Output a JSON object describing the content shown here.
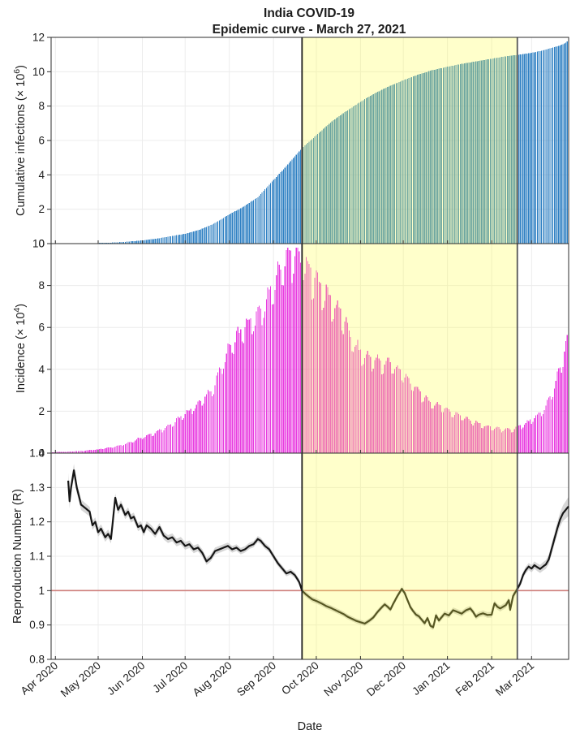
{
  "chart": {
    "title_line1": "India COVID-19",
    "title_line2": "Epidemic curve - March 27, 2021",
    "xlabel": "Date"
  },
  "x_axis": {
    "range_days": [
      0,
      363
    ],
    "ticks": [
      {
        "day": 3,
        "label": "Apr 2020"
      },
      {
        "day": 33,
        "label": "May 2020"
      },
      {
        "day": 64,
        "label": "Jun 2020"
      },
      {
        "day": 94,
        "label": "Jul 2020"
      },
      {
        "day": 125,
        "label": "Aug 2020"
      },
      {
        "day": 156,
        "label": "Sep 2020"
      },
      {
        "day": 186,
        "label": "Oct 2020"
      },
      {
        "day": 217,
        "label": "Nov 2020"
      },
      {
        "day": 247,
        "label": "Dec 2020"
      },
      {
        "day": 278,
        "label": "Jan 2021"
      },
      {
        "day": 309,
        "label": "Feb 2021"
      },
      {
        "day": 337,
        "label": "Mar 2021"
      }
    ]
  },
  "highlight_region": {
    "start_day": 176,
    "end_day": 327,
    "fill": "rgba(255,255,70,0.28)",
    "left_line_color": "#1f1f1f",
    "right_line_color": "#565656",
    "line_width": 1.8
  },
  "chart_data": [
    {
      "type": "bar",
      "name": "cumulative-infections",
      "ylabel": "Cumulative infections (× 10^6)",
      "ylabel_parts": {
        "pre": "Cumulative infections (× 10",
        "sup": "6",
        "post": ")"
      },
      "ylim": [
        0,
        12
      ],
      "yticks": [
        12,
        10,
        8,
        6,
        4,
        2,
        0
      ],
      "ytick_labels": [
        "12",
        "10",
        "8",
        "6",
        "4",
        "2",
        "0"
      ],
      "bar_color": "#2f80c3",
      "points": [
        [
          0,
          0.001
        ],
        [
          10,
          0.007
        ],
        [
          20,
          0.018
        ],
        [
          33,
          0.035
        ],
        [
          43,
          0.06
        ],
        [
          53,
          0.11
        ],
        [
          64,
          0.19
        ],
        [
          74,
          0.29
        ],
        [
          84,
          0.43
        ],
        [
          94,
          0.57
        ],
        [
          104,
          0.8
        ],
        [
          114,
          1.15
        ],
        [
          125,
          1.7
        ],
        [
          135,
          2.15
        ],
        [
          145,
          2.7
        ],
        [
          156,
          3.7
        ],
        [
          166,
          4.6
        ],
        [
          176,
          5.56
        ],
        [
          186,
          6.3
        ],
        [
          196,
          7.05
        ],
        [
          206,
          7.65
        ],
        [
          217,
          8.25
        ],
        [
          227,
          8.75
        ],
        [
          237,
          9.15
        ],
        [
          247,
          9.5
        ],
        [
          257,
          9.82
        ],
        [
          267,
          10.08
        ],
        [
          278,
          10.29
        ],
        [
          288,
          10.46
        ],
        [
          298,
          10.6
        ],
        [
          309,
          10.76
        ],
        [
          319,
          10.9
        ],
        [
          327,
          10.98
        ],
        [
          337,
          11.1
        ],
        [
          344,
          11.22
        ],
        [
          351,
          11.38
        ],
        [
          356,
          11.5
        ],
        [
          359,
          11.6
        ],
        [
          361,
          11.7
        ],
        [
          363,
          11.83
        ]
      ]
    },
    {
      "type": "bar",
      "name": "incidence",
      "ylabel": "Incidence (× 10^4)",
      "ylabel_parts": {
        "pre": "Incidence (× 10",
        "sup": "4",
        "post": ")"
      },
      "ylim": [
        0,
        10
      ],
      "yticks": [
        10,
        8,
        6,
        4,
        2,
        0
      ],
      "ytick_labels": [
        "10",
        "8",
        "6",
        "4",
        "2",
        "0"
      ],
      "bar_color": "#e83ce0",
      "value_clamp_max": 9.8,
      "weekly_factors": [
        1.03,
        0.9,
        0.91,
        0.99,
        1.05,
        1.07,
        1.05
      ],
      "jitter_amp": 0.06,
      "points": [
        [
          0,
          0.04
        ],
        [
          10,
          0.06
        ],
        [
          20,
          0.1
        ],
        [
          33,
          0.18
        ],
        [
          43,
          0.28
        ],
        [
          53,
          0.45
        ],
        [
          64,
          0.75
        ],
        [
          74,
          1.0
        ],
        [
          84,
          1.35
        ],
        [
          94,
          1.85
        ],
        [
          104,
          2.35
        ],
        [
          114,
          3.1
        ],
        [
          125,
          5.0
        ],
        [
          135,
          5.9
        ],
        [
          145,
          6.4
        ],
        [
          152,
          7.3
        ],
        [
          156,
          7.8
        ],
        [
          162,
          8.9
        ],
        [
          168,
          9.3
        ],
        [
          172,
          9.3
        ],
        [
          176,
          8.9
        ],
        [
          181,
          8.5
        ],
        [
          186,
          8.2
        ],
        [
          191,
          7.6
        ],
        [
          196,
          7.2
        ],
        [
          201,
          6.8
        ],
        [
          206,
          6.2
        ],
        [
          211,
          5.3
        ],
        [
          217,
          4.7
        ],
        [
          222,
          4.5
        ],
        [
          227,
          4.4
        ],
        [
          232,
          4.2
        ],
        [
          237,
          4.3
        ],
        [
          242,
          4.0
        ],
        [
          247,
          3.7
        ],
        [
          252,
          3.3
        ],
        [
          257,
          3.0
        ],
        [
          262,
          2.6
        ],
        [
          267,
          2.35
        ],
        [
          272,
          2.25
        ],
        [
          278,
          2.05
        ],
        [
          283,
          1.85
        ],
        [
          288,
          1.75
        ],
        [
          293,
          1.55
        ],
        [
          298,
          1.45
        ],
        [
          303,
          1.3
        ],
        [
          309,
          1.2
        ],
        [
          314,
          1.15
        ],
        [
          319,
          1.1
        ],
        [
          323,
          1.1
        ],
        [
          327,
          1.2
        ],
        [
          332,
          1.35
        ],
        [
          337,
          1.55
        ],
        [
          341,
          1.75
        ],
        [
          344,
          1.95
        ],
        [
          347,
          2.2
        ],
        [
          351,
          2.8
        ],
        [
          354,
          3.3
        ],
        [
          356,
          3.8
        ],
        [
          358,
          4.3
        ],
        [
          360,
          4.8
        ],
        [
          362,
          5.4
        ],
        [
          363,
          5.9
        ]
      ]
    },
    {
      "type": "line",
      "name": "reproduction-number",
      "ylabel": "Reproduction Number (R)",
      "ylabel_parts": {
        "pre": "Reproduction Number (R)",
        "sup": "",
        "post": ""
      },
      "ylim": [
        0.8,
        1.4
      ],
      "yticks": [
        1.4,
        1.3,
        1.2,
        1.1,
        1,
        0.9,
        0.8
      ],
      "ytick_labels": [
        "1.4",
        "1.3",
        "1.2",
        "1.1",
        "1",
        "0.9",
        "0.8"
      ],
      "line_color": "#161616",
      "band_color": "#c2c2c2",
      "refline": {
        "value": 1,
        "color": "#cd7e7a"
      },
      "points": [
        [
          12,
          1.32
        ],
        [
          13,
          1.26
        ],
        [
          14,
          1.3
        ],
        [
          16,
          1.35
        ],
        [
          18,
          1.3
        ],
        [
          21,
          1.25
        ],
        [
          24,
          1.24
        ],
        [
          27,
          1.23
        ],
        [
          29,
          1.19
        ],
        [
          31,
          1.2
        ],
        [
          33,
          1.17
        ],
        [
          35,
          1.18
        ],
        [
          38,
          1.155
        ],
        [
          40,
          1.165
        ],
        [
          42,
          1.15
        ],
        [
          45,
          1.27
        ],
        [
          47,
          1.235
        ],
        [
          49,
          1.25
        ],
        [
          52,
          1.22
        ],
        [
          54,
          1.23
        ],
        [
          56,
          1.21
        ],
        [
          58,
          1.215
        ],
        [
          61,
          1.185
        ],
        [
          63,
          1.19
        ],
        [
          65,
          1.17
        ],
        [
          67,
          1.19
        ],
        [
          70,
          1.18
        ],
        [
          73,
          1.165
        ],
        [
          76,
          1.185
        ],
        [
          79,
          1.16
        ],
        [
          82,
          1.15
        ],
        [
          85,
          1.155
        ],
        [
          88,
          1.14
        ],
        [
          91,
          1.145
        ],
        [
          94,
          1.13
        ],
        [
          97,
          1.135
        ],
        [
          100,
          1.12
        ],
        [
          103,
          1.125
        ],
        [
          106,
          1.11
        ],
        [
          109,
          1.085
        ],
        [
          112,
          1.095
        ],
        [
          115,
          1.115
        ],
        [
          118,
          1.12
        ],
        [
          121,
          1.125
        ],
        [
          124,
          1.13
        ],
        [
          127,
          1.12
        ],
        [
          130,
          1.125
        ],
        [
          133,
          1.115
        ],
        [
          136,
          1.12
        ],
        [
          139,
          1.13
        ],
        [
          142,
          1.135
        ],
        [
          145,
          1.15
        ],
        [
          147,
          1.145
        ],
        [
          150,
          1.13
        ],
        [
          153,
          1.12
        ],
        [
          156,
          1.1
        ],
        [
          159,
          1.08
        ],
        [
          162,
          1.065
        ],
        [
          165,
          1.05
        ],
        [
          168,
          1.055
        ],
        [
          171,
          1.045
        ],
        [
          174,
          1.025
        ],
        [
          176,
          1.0
        ],
        [
          179,
          0.988
        ],
        [
          183,
          0.975
        ],
        [
          187,
          0.968
        ],
        [
          190,
          0.962
        ],
        [
          193,
          0.955
        ],
        [
          196,
          0.95
        ],
        [
          199,
          0.944
        ],
        [
          202,
          0.938
        ],
        [
          205,
          0.932
        ],
        [
          208,
          0.924
        ],
        [
          211,
          0.918
        ],
        [
          214,
          0.912
        ],
        [
          217,
          0.908
        ],
        [
          220,
          0.904
        ],
        [
          223,
          0.912
        ],
        [
          226,
          0.922
        ],
        [
          229,
          0.938
        ],
        [
          232,
          0.952
        ],
        [
          234,
          0.96
        ],
        [
          236,
          0.953
        ],
        [
          238,
          0.945
        ],
        [
          240,
          0.962
        ],
        [
          243,
          0.985
        ],
        [
          246,
          1.005
        ],
        [
          248,
          0.993
        ],
        [
          250,
          0.972
        ],
        [
          252,
          0.952
        ],
        [
          254,
          0.94
        ],
        [
          256,
          0.93
        ],
        [
          258,
          0.925
        ],
        [
          260,
          0.915
        ],
        [
          262,
          0.905
        ],
        [
          264,
          0.92
        ],
        [
          266,
          0.898
        ],
        [
          268,
          0.893
        ],
        [
          270,
          0.928
        ],
        [
          272,
          0.913
        ],
        [
          274,
          0.923
        ],
        [
          276,
          0.933
        ],
        [
          279,
          0.928
        ],
        [
          282,
          0.943
        ],
        [
          285,
          0.938
        ],
        [
          288,
          0.933
        ],
        [
          291,
          0.943
        ],
        [
          294,
          0.948
        ],
        [
          296,
          0.938
        ],
        [
          298,
          0.924
        ],
        [
          300,
          0.93
        ],
        [
          303,
          0.934
        ],
        [
          306,
          0.929
        ],
        [
          309,
          0.93
        ],
        [
          311,
          0.963
        ],
        [
          313,
          0.953
        ],
        [
          315,
          0.948
        ],
        [
          317,
          0.953
        ],
        [
          319,
          0.958
        ],
        [
          321,
          0.972
        ],
        [
          322,
          0.944
        ],
        [
          324,
          0.984
        ],
        [
          327,
          1.005
        ],
        [
          329,
          1.02
        ],
        [
          331,
          1.045
        ],
        [
          333,
          1.06
        ],
        [
          335,
          1.07
        ],
        [
          337,
          1.064
        ],
        [
          339,
          1.074
        ],
        [
          341,
          1.068
        ],
        [
          343,
          1.063
        ],
        [
          345,
          1.07
        ],
        [
          347,
          1.076
        ],
        [
          349,
          1.09
        ],
        [
          351,
          1.12
        ],
        [
          353,
          1.15
        ],
        [
          355,
          1.18
        ],
        [
          357,
          1.207
        ],
        [
          359,
          1.225
        ],
        [
          361,
          1.235
        ],
        [
          363,
          1.245
        ]
      ],
      "ci_halfwidth": [
        [
          12,
          0.022
        ],
        [
          18,
          0.016
        ],
        [
          30,
          0.013
        ],
        [
          60,
          0.012
        ],
        [
          100,
          0.011
        ],
        [
          140,
          0.009
        ],
        [
          176,
          0.008
        ],
        [
          220,
          0.007
        ],
        [
          268,
          0.008
        ],
        [
          300,
          0.008
        ],
        [
          327,
          0.009
        ],
        [
          340,
          0.011
        ],
        [
          348,
          0.013
        ],
        [
          355,
          0.018
        ],
        [
          360,
          0.024
        ],
        [
          363,
          0.028
        ]
      ]
    }
  ]
}
